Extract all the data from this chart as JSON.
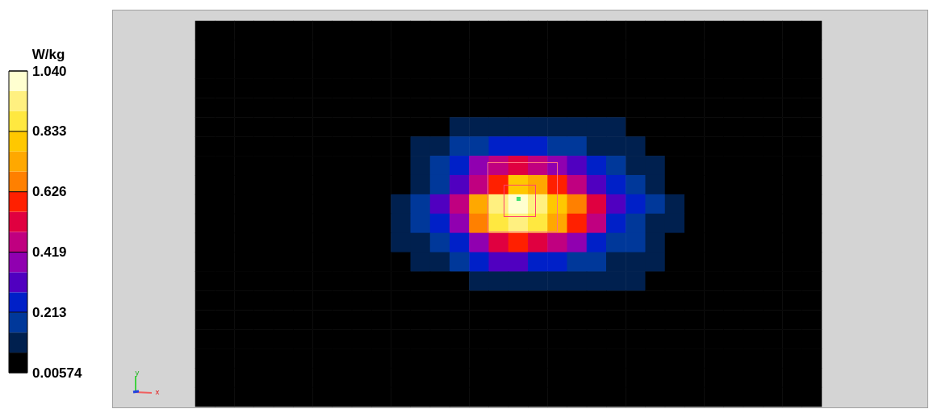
{
  "chart_data": {
    "type": "heatmap",
    "categories": [
      null,
      null,
      null,
      null,
      null,
      null,
      null,
      null,
      null,
      null,
      null,
      null,
      null,
      null,
      null,
      null,
      null,
      null,
      null,
      null,
      null,
      null,
      null,
      null,
      null,
      null,
      null,
      null,
      null,
      null,
      null,
      null
    ],
    "y_categories": [
      null,
      null,
      null,
      null,
      null,
      null,
      null,
      null,
      null,
      null,
      null,
      null,
      null,
      null,
      null,
      null,
      null,
      null,
      null,
      null
    ],
    "cells": [
      [
        0.04,
        0.04,
        0.04,
        0.04,
        0.04,
        0.04,
        0.04,
        0.04,
        0.04,
        0.04,
        0.04,
        0.04,
        0.04,
        0.04,
        0.04,
        0.04,
        0.04,
        0.04,
        0.04,
        0.04,
        0.04,
        0.04,
        0.04,
        0.04,
        0.04,
        0.04,
        0.04,
        0.04,
        0.04,
        0.04,
        0.04,
        0.04
      ],
      [
        0.04,
        0.04,
        0.04,
        0.04,
        0.04,
        0.04,
        0.04,
        0.04,
        0.04,
        0.04,
        0.04,
        0.04,
        0.04,
        0.04,
        0.04,
        0.04,
        0.04,
        0.04,
        0.04,
        0.04,
        0.04,
        0.04,
        0.04,
        0.04,
        0.04,
        0.04,
        0.04,
        0.04,
        0.04,
        0.04,
        0.04,
        0.04
      ],
      [
        0.04,
        0.04,
        0.04,
        0.04,
        0.04,
        0.04,
        0.04,
        0.04,
        0.04,
        0.04,
        0.04,
        0.04,
        0.04,
        0.04,
        0.04,
        0.04,
        0.04,
        0.04,
        0.04,
        0.04,
        0.04,
        0.04,
        0.04,
        0.04,
        0.04,
        0.04,
        0.04,
        0.04,
        0.04,
        0.04,
        0.04,
        0.04
      ],
      [
        0.04,
        0.04,
        0.04,
        0.04,
        0.04,
        0.04,
        0.04,
        0.04,
        0.04,
        0.04,
        0.04,
        0.04,
        0.04,
        0.04,
        0.04,
        0.04,
        0.04,
        0.04,
        0.04,
        0.04,
        0.04,
        0.04,
        0.04,
        0.04,
        0.04,
        0.04,
        0.04,
        0.04,
        0.04,
        0.04,
        0.04,
        0.04
      ],
      [
        0.04,
        0.04,
        0.04,
        0.04,
        0.04,
        0.04,
        0.04,
        0.04,
        0.04,
        0.04,
        0.04,
        0.04,
        0.04,
        0.04,
        0.04,
        0.04,
        0.04,
        0.04,
        0.04,
        0.04,
        0.04,
        0.04,
        0.04,
        0.04,
        0.04,
        0.04,
        0.04,
        0.04,
        0.04,
        0.04,
        0.04,
        0.04
      ],
      [
        0.04,
        0.04,
        0.04,
        0.04,
        0.04,
        0.04,
        0.04,
        0.04,
        0.04,
        0.04,
        0.04,
        0.04,
        0.04,
        0.11,
        0.11,
        0.11,
        0.11,
        0.11,
        0.11,
        0.11,
        0.11,
        0.11,
        0.04,
        0.04,
        0.04,
        0.04,
        0.04,
        0.04,
        0.04,
        0.04,
        0.04,
        0.04
      ],
      [
        0.04,
        0.04,
        0.04,
        0.04,
        0.04,
        0.04,
        0.04,
        0.04,
        0.04,
        0.04,
        0.04,
        0.11,
        0.11,
        0.18,
        0.18,
        0.25,
        0.25,
        0.25,
        0.18,
        0.18,
        0.11,
        0.11,
        0.11,
        0.04,
        0.04,
        0.04,
        0.04,
        0.04,
        0.04,
        0.04,
        0.04,
        0.04
      ],
      [
        0.04,
        0.04,
        0.04,
        0.04,
        0.04,
        0.04,
        0.04,
        0.04,
        0.04,
        0.04,
        0.04,
        0.11,
        0.18,
        0.25,
        0.39,
        0.46,
        0.52,
        0.46,
        0.39,
        0.32,
        0.25,
        0.18,
        0.11,
        0.11,
        0.04,
        0.04,
        0.04,
        0.04,
        0.04,
        0.04,
        0.04,
        0.04
      ],
      [
        0.04,
        0.04,
        0.04,
        0.04,
        0.04,
        0.04,
        0.04,
        0.04,
        0.04,
        0.04,
        0.04,
        0.11,
        0.18,
        0.32,
        0.46,
        0.59,
        0.8,
        0.73,
        0.59,
        0.46,
        0.32,
        0.25,
        0.18,
        0.11,
        0.04,
        0.04,
        0.04,
        0.04,
        0.04,
        0.04,
        0.04,
        0.04
      ],
      [
        0.04,
        0.04,
        0.04,
        0.04,
        0.04,
        0.04,
        0.04,
        0.04,
        0.04,
        0.04,
        0.11,
        0.18,
        0.32,
        0.46,
        0.73,
        0.94,
        1.01,
        0.94,
        0.8,
        0.66,
        0.52,
        0.32,
        0.25,
        0.18,
        0.11,
        0.04,
        0.04,
        0.04,
        0.04,
        0.04,
        0.04,
        0.04
      ],
      [
        0.04,
        0.04,
        0.04,
        0.04,
        0.04,
        0.04,
        0.04,
        0.04,
        0.04,
        0.04,
        0.11,
        0.18,
        0.25,
        0.39,
        0.66,
        0.87,
        0.94,
        0.87,
        0.73,
        0.59,
        0.46,
        0.25,
        0.18,
        0.11,
        0.11,
        0.04,
        0.04,
        0.04,
        0.04,
        0.04,
        0.04,
        0.04
      ],
      [
        0.04,
        0.04,
        0.04,
        0.04,
        0.04,
        0.04,
        0.04,
        0.04,
        0.04,
        0.04,
        0.11,
        0.11,
        0.18,
        0.25,
        0.39,
        0.52,
        0.59,
        0.52,
        0.46,
        0.39,
        0.25,
        0.18,
        0.18,
        0.11,
        0.04,
        0.04,
        0.04,
        0.04,
        0.04,
        0.04,
        0.04,
        0.04
      ],
      [
        0.04,
        0.04,
        0.04,
        0.04,
        0.04,
        0.04,
        0.04,
        0.04,
        0.04,
        0.04,
        0.04,
        0.11,
        0.11,
        0.18,
        0.25,
        0.32,
        0.32,
        0.25,
        0.25,
        0.18,
        0.18,
        0.11,
        0.11,
        0.11,
        0.04,
        0.04,
        0.04,
        0.04,
        0.04,
        0.04,
        0.04,
        0.04
      ],
      [
        0.04,
        0.04,
        0.04,
        0.04,
        0.04,
        0.04,
        0.04,
        0.04,
        0.04,
        0.04,
        0.04,
        0.04,
        0.04,
        0.04,
        0.11,
        0.11,
        0.11,
        0.11,
        0.11,
        0.11,
        0.11,
        0.11,
        0.11,
        0.04,
        0.04,
        0.04,
        0.04,
        0.04,
        0.04,
        0.04,
        0.04,
        0.04
      ],
      [
        0.04,
        0.04,
        0.04,
        0.04,
        0.04,
        0.04,
        0.04,
        0.04,
        0.04,
        0.04,
        0.04,
        0.04,
        0.04,
        0.04,
        0.04,
        0.04,
        0.04,
        0.04,
        0.04,
        0.04,
        0.04,
        0.04,
        0.04,
        0.04,
        0.04,
        0.04,
        0.04,
        0.04,
        0.04,
        0.04,
        0.04,
        0.04
      ],
      [
        0.04,
        0.04,
        0.04,
        0.04,
        0.04,
        0.04,
        0.04,
        0.04,
        0.04,
        0.04,
        0.04,
        0.04,
        0.04,
        0.04,
        0.04,
        0.04,
        0.04,
        0.04,
        0.04,
        0.04,
        0.04,
        0.04,
        0.04,
        0.04,
        0.04,
        0.04,
        0.04,
        0.04,
        0.04,
        0.04,
        0.04,
        0.04
      ],
      [
        0.04,
        0.04,
        0.04,
        0.04,
        0.04,
        0.04,
        0.04,
        0.04,
        0.04,
        0.04,
        0.04,
        0.04,
        0.04,
        0.04,
        0.04,
        0.04,
        0.04,
        0.04,
        0.04,
        0.04,
        0.04,
        0.04,
        0.04,
        0.04,
        0.04,
        0.04,
        0.04,
        0.04,
        0.04,
        0.04,
        0.04,
        0.04
      ],
      [
        0.04,
        0.04,
        0.04,
        0.04,
        0.04,
        0.04,
        0.04,
        0.04,
        0.04,
        0.04,
        0.04,
        0.04,
        0.04,
        0.04,
        0.04,
        0.04,
        0.04,
        0.04,
        0.04,
        0.04,
        0.04,
        0.04,
        0.04,
        0.04,
        0.04,
        0.04,
        0.04,
        0.04,
        0.04,
        0.04,
        0.04,
        0.04
      ],
      [
        0.04,
        0.04,
        0.04,
        0.04,
        0.04,
        0.04,
        0.04,
        0.04,
        0.04,
        0.04,
        0.04,
        0.04,
        0.04,
        0.04,
        0.04,
        0.04,
        0.04,
        0.04,
        0.04,
        0.04,
        0.04,
        0.04,
        0.04,
        0.04,
        0.04,
        0.04,
        0.04,
        0.04,
        0.04,
        0.04,
        0.04,
        0.04
      ],
      [
        0.04,
        0.04,
        0.04,
        0.04,
        0.04,
        0.04,
        0.04,
        0.04,
        0.04,
        0.04,
        0.04,
        0.04,
        0.04,
        0.04,
        0.04,
        0.04,
        0.04,
        0.04,
        0.04,
        0.04,
        0.04,
        0.04,
        0.04,
        0.04,
        0.04,
        0.04,
        0.04,
        0.04,
        0.04,
        0.04,
        0.04,
        0.04
      ]
    ],
    "clabel": "W/kg",
    "clim": [
      0.00574,
      1.04
    ],
    "cticks": [
      0.00574,
      0.213,
      0.419,
      0.626,
      0.833,
      {
        "value": 1.04,
        "label": "1.040"
      }
    ],
    "annotations": [
      "y",
      "x"
    ],
    "tick_labels": false
  }
}
